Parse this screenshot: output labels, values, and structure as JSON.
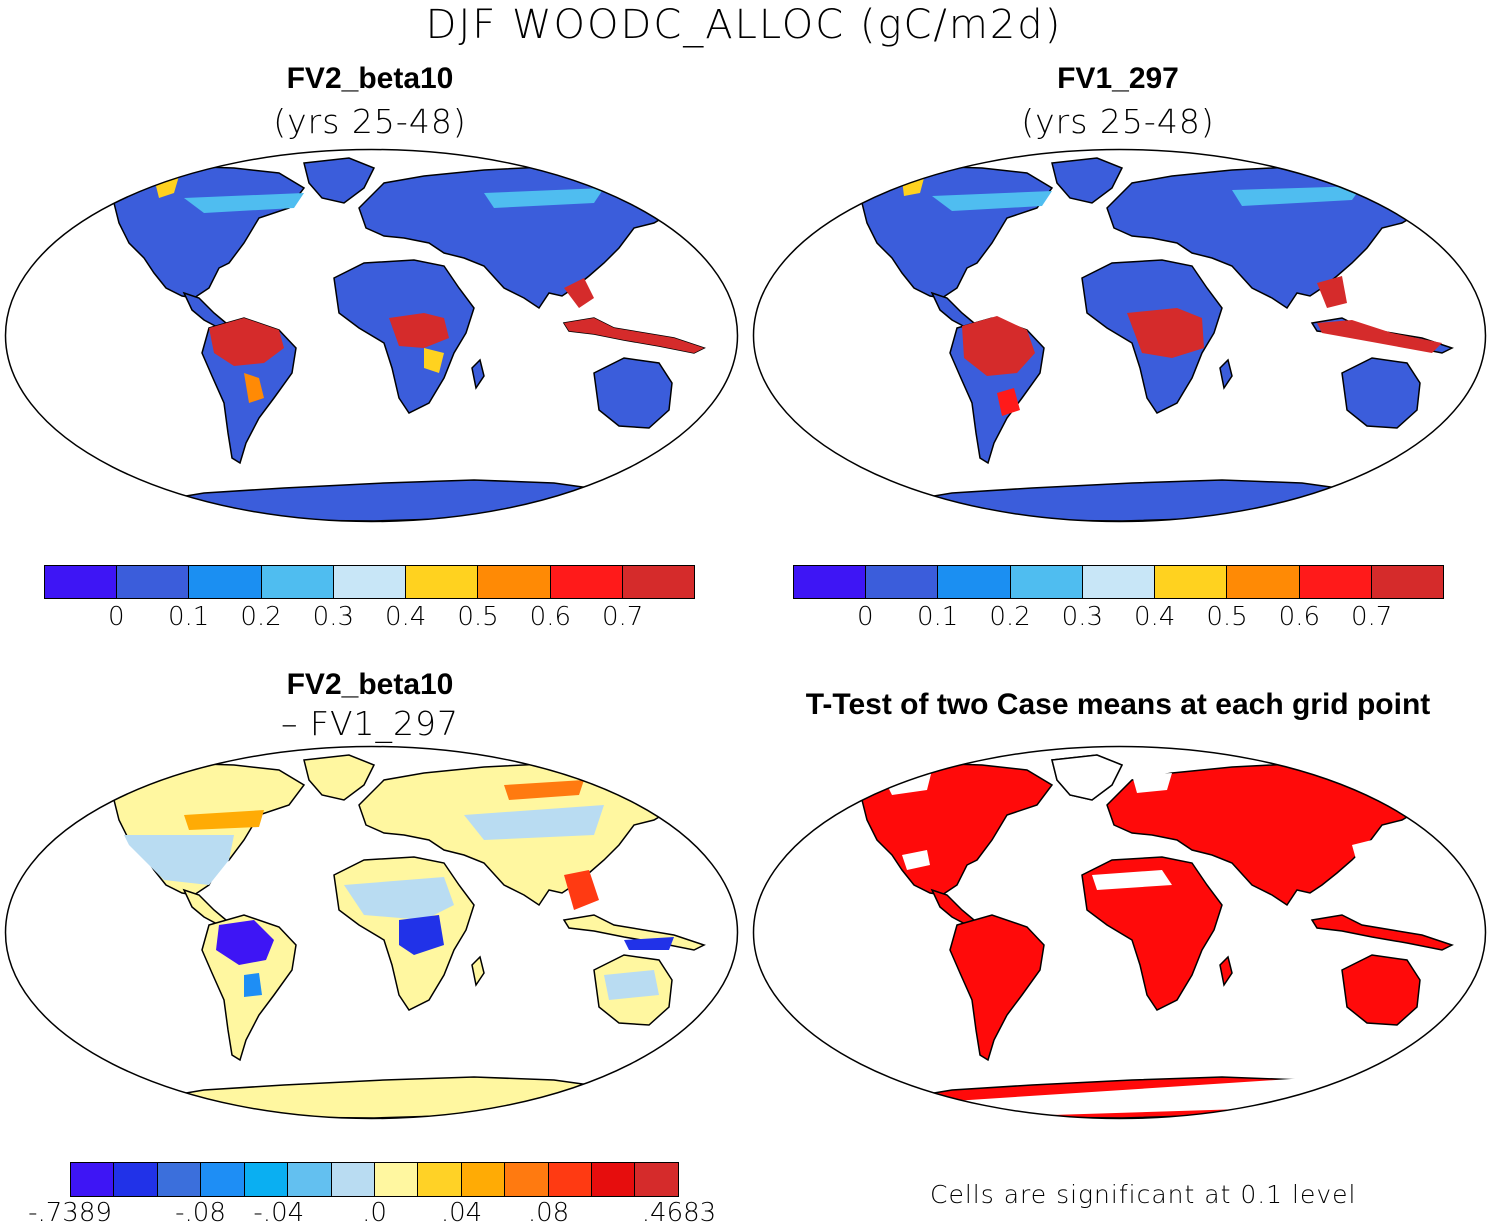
{
  "title": "DJF WOODC_ALLOC (gC/m2d)",
  "colors": {
    "abs_scale": [
      "#3e15f5",
      "#3b5ddb",
      "#1b8ff2",
      "#4fbdf0",
      "#c8e6f7",
      "#ffd21f",
      "#ff8a05",
      "#ff1a1a",
      "#d52b2b"
    ],
    "diff_scale": [
      "#3e15f5",
      "#2132e8",
      "#3b6fdc",
      "#1e8ef5",
      "#0aaff2",
      "#63c0f0",
      "#b9dcf2",
      "#fff7a0",
      "#ffd226",
      "#ffab05",
      "#ff7a10",
      "#ff3a12",
      "#e60d0d",
      "#d52b2b"
    ],
    "land_default": "#3b5ddb",
    "tropics_abs": "#d52b2b",
    "diff_land": "#fff7a0",
    "ttest_land": "#ff0a0a"
  },
  "panels": [
    {
      "id": "fv2",
      "title": "FV2_beta10",
      "subtitle": "(yrs 25-48)",
      "colorbar_ticks": [
        "0",
        "0.1",
        "0.2",
        "0.3",
        "0.4",
        "0.5",
        "0.6",
        "0.7"
      ]
    },
    {
      "id": "fv1",
      "title": "FV1_297",
      "subtitle": "(yrs 25-48)",
      "colorbar_ticks": [
        "0",
        "0.1",
        "0.2",
        "0.3",
        "0.4",
        "0.5",
        "0.6",
        "0.7"
      ]
    },
    {
      "id": "diff",
      "title": "FV2_beta10",
      "subtitle": "– FV1_297",
      "colorbar_ticks": [
        "-.7389",
        "-.08",
        "-.04",
        ".0",
        ".04",
        ".08",
        ".4683"
      ]
    },
    {
      "id": "ttest",
      "title": "T-Test of two Case means at each grid point",
      "note": "Cells are significant at 0.1 level"
    }
  ]
}
